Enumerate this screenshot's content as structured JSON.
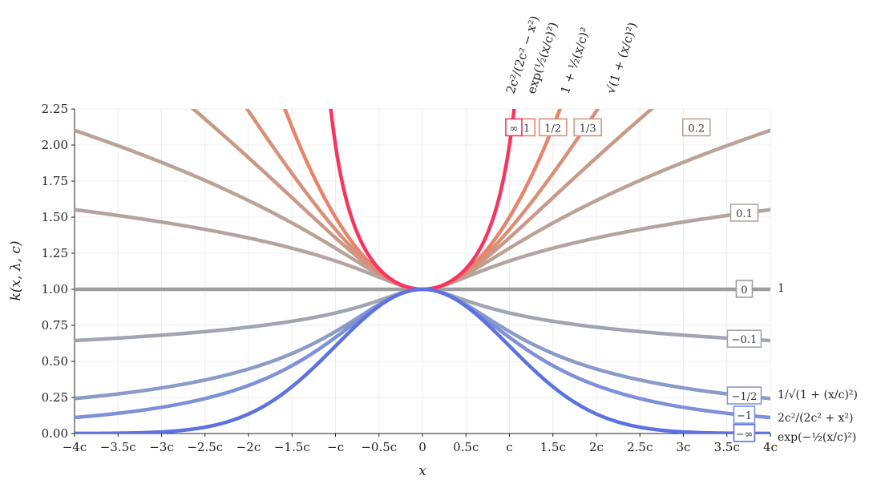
{
  "chart_data": {
    "type": "line",
    "xlabel": "x",
    "ylabel": "k(x, λ, c)",
    "xlim": [
      -4,
      4
    ],
    "ylim": [
      0,
      2.25
    ],
    "grid": true,
    "x_ticks": [
      {
        "value": -4,
        "label": "−4c"
      },
      {
        "value": -3.5,
        "label": "−3.5c"
      },
      {
        "value": -3,
        "label": "−3c"
      },
      {
        "value": -2.5,
        "label": "−2.5c"
      },
      {
        "value": -2,
        "label": "−2c"
      },
      {
        "value": -1.5,
        "label": "−1.5c"
      },
      {
        "value": -1,
        "label": "−c"
      },
      {
        "value": -0.5,
        "label": "−0.5c"
      },
      {
        "value": 0,
        "label": "0"
      },
      {
        "value": 0.5,
        "label": "0.5c"
      },
      {
        "value": 1,
        "label": "c"
      },
      {
        "value": 1.5,
        "label": "1.5c"
      },
      {
        "value": 2,
        "label": "2c"
      },
      {
        "value": 2.5,
        "label": "2.5c"
      },
      {
        "value": 3,
        "label": "3c"
      },
      {
        "value": 3.5,
        "label": "3.5c"
      },
      {
        "value": 4,
        "label": "4c"
      }
    ],
    "y_ticks": [
      {
        "value": 0,
        "label": "0.00"
      },
      {
        "value": 0.25,
        "label": "0.25"
      },
      {
        "value": 0.5,
        "label": "0.50"
      },
      {
        "value": 0.75,
        "label": "0.75"
      },
      {
        "value": 1,
        "label": "1.00"
      },
      {
        "value": 1.25,
        "label": "1.25"
      },
      {
        "value": 1.5,
        "label": "1.50"
      },
      {
        "value": 1.75,
        "label": "1.75"
      },
      {
        "value": 2,
        "label": "2.00"
      },
      {
        "value": 2.25,
        "label": "2.25"
      }
    ],
    "series": [
      {
        "lambda": 0,
        "label": "0",
        "color": "#9e9e9e",
        "label_x": 3.7,
        "formula": "1"
      },
      {
        "lambda": 0.1,
        "label": "0.1",
        "color": "#b3a49e",
        "label_x": 3.7
      },
      {
        "lambda": 0.2,
        "label": "0.2",
        "color": "#bba297",
        "label_x": 3.15
      },
      {
        "lambda": 0.333,
        "label": "1/3",
        "color": "#c99988",
        "label_x": 1.9,
        "formula_top": "√(1 + (x/c)²)"
      },
      {
        "lambda": 0.5,
        "label": "1/2",
        "color": "#d8907a",
        "label_x": 1.5,
        "formula_top": "1 + ½(x/c)²"
      },
      {
        "lambda": 1,
        "label": "1",
        "color": "#e8836c",
        "label_x": 1.2,
        "formula_top": "exp(½(x/c)²)"
      },
      {
        "lambda": "inf",
        "label": "∞",
        "color": "#f73560",
        "label_x": 1.05,
        "formula_top": "2c²/(2c² − x²)"
      },
      {
        "lambda": -0.1,
        "label": "−0.1",
        "color": "#a1a5b2",
        "label_x": 3.7
      },
      {
        "lambda": -0.5,
        "label": "−1/2",
        "color": "#8a9bc8",
        "label_x": 3.7,
        "formula": "1/√(1 + (x/c)²)"
      },
      {
        "lambda": -1,
        "label": "−1",
        "color": "#7e90d8",
        "label_x": 3.7,
        "formula": "2c²/(2c² + x²)"
      },
      {
        "lambda": "-inf",
        "label": "−∞",
        "color": "#5d72e0",
        "label_x": 3.7,
        "formula": "exp(−½(x/c)²)"
      }
    ]
  }
}
